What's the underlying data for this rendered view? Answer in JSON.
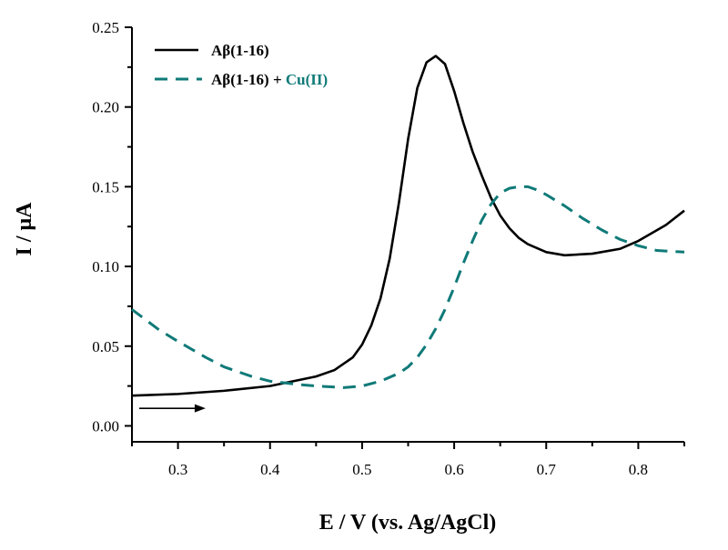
{
  "chart_data": {
    "type": "line",
    "xlabel": "E / V (vs. Ag/AgCl)",
    "ylabel": "I / μA",
    "xlim": [
      0.25,
      0.85
    ],
    "ylim": [
      -0.01,
      0.25
    ],
    "xticks": [
      0.3,
      0.4,
      0.5,
      0.6,
      0.7,
      0.8
    ],
    "xtick_labels": [
      "0.3",
      "0.4",
      "0.5",
      "0.6",
      "0.7",
      "0.8"
    ],
    "yticks": [
      0.0,
      0.05,
      0.1,
      0.15,
      0.2,
      0.25
    ],
    "ytick_labels": [
      "0.00",
      "0.05",
      "0.10",
      "0.15",
      "0.20",
      "0.25"
    ],
    "grid": false,
    "legend_position": "top-left",
    "series": [
      {
        "name": "Aβ(1-16)",
        "style": "solid",
        "color": "#000000",
        "x": [
          0.25,
          0.3,
          0.35,
          0.4,
          0.45,
          0.47,
          0.49,
          0.5,
          0.51,
          0.52,
          0.53,
          0.54,
          0.55,
          0.56,
          0.57,
          0.58,
          0.59,
          0.6,
          0.61,
          0.62,
          0.63,
          0.64,
          0.65,
          0.66,
          0.67,
          0.68,
          0.7,
          0.72,
          0.75,
          0.78,
          0.8,
          0.83,
          0.85
        ],
        "y": [
          0.019,
          0.02,
          0.022,
          0.025,
          0.031,
          0.035,
          0.043,
          0.051,
          0.063,
          0.08,
          0.105,
          0.14,
          0.18,
          0.212,
          0.228,
          0.232,
          0.227,
          0.21,
          0.19,
          0.172,
          0.157,
          0.143,
          0.132,
          0.124,
          0.118,
          0.114,
          0.109,
          0.107,
          0.108,
          0.111,
          0.116,
          0.126,
          0.135
        ]
      },
      {
        "name_parts": [
          "Aβ(1-16) + ",
          "Cu(II)"
        ],
        "style": "dashed",
        "color": "#0f7a78",
        "x": [
          0.25,
          0.28,
          0.3,
          0.33,
          0.35,
          0.38,
          0.4,
          0.43,
          0.45,
          0.48,
          0.5,
          0.52,
          0.54,
          0.55,
          0.56,
          0.57,
          0.58,
          0.59,
          0.6,
          0.61,
          0.62,
          0.63,
          0.64,
          0.65,
          0.66,
          0.67,
          0.68,
          0.69,
          0.7,
          0.72,
          0.74,
          0.76,
          0.78,
          0.8,
          0.82,
          0.85
        ],
        "y": [
          0.073,
          0.06,
          0.053,
          0.043,
          0.037,
          0.031,
          0.028,
          0.026,
          0.025,
          0.024,
          0.025,
          0.028,
          0.033,
          0.037,
          0.043,
          0.051,
          0.061,
          0.073,
          0.087,
          0.102,
          0.116,
          0.129,
          0.139,
          0.146,
          0.149,
          0.15,
          0.15,
          0.148,
          0.145,
          0.138,
          0.13,
          0.123,
          0.117,
          0.113,
          0.11,
          0.109
        ]
      }
    ],
    "annotations": [
      {
        "type": "arrow",
        "from": [
          0.25,
          0.011
        ],
        "to": [
          0.33,
          0.011
        ],
        "meaning": "scan direction"
      }
    ]
  }
}
